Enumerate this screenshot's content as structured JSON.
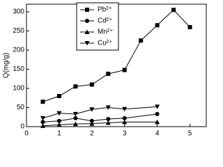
{
  "chart_data": {
    "type": "line",
    "ylabel": "Q(mg/g)",
    "xlim": [
      0,
      5.5
    ],
    "xticks": [
      0,
      1,
      2,
      3,
      4,
      5
    ],
    "ylim": [
      0,
      320
    ],
    "yticks": [
      0,
      50,
      100,
      150,
      200,
      250,
      300
    ],
    "legend": "top-center",
    "series": [
      {
        "name": "Pb²⁺",
        "color": "#000000",
        "marker": "square",
        "x": [
          0.5,
          1,
          1.5,
          2,
          2.5,
          3,
          3.5,
          4,
          4.5,
          5
        ],
        "values": [
          65,
          80,
          105,
          110,
          138,
          148,
          225,
          265,
          305,
          260
        ]
      },
      {
        "name": "Cd²⁺",
        "color": "#000000",
        "marker": "circle",
        "x": [
          0.5,
          1,
          1.5,
          2,
          2.5,
          3,
          4
        ],
        "values": [
          12,
          15,
          22,
          15,
          20,
          22,
          33
        ]
      },
      {
        "name": "Mn²⁺",
        "color": "#000000",
        "marker": "triangle-up",
        "x": [
          0.5,
          1,
          1.5,
          2,
          2.5,
          3,
          4
        ],
        "values": [
          2,
          5,
          7,
          8,
          10,
          12,
          12
        ]
      },
      {
        "name": "Cu²⁺",
        "color": "#000000",
        "marker": "triangle-down",
        "x": [
          0.5,
          1,
          1.5,
          2,
          2.5,
          3,
          4
        ],
        "values": [
          22,
          35,
          33,
          45,
          50,
          46,
          52
        ]
      }
    ]
  }
}
